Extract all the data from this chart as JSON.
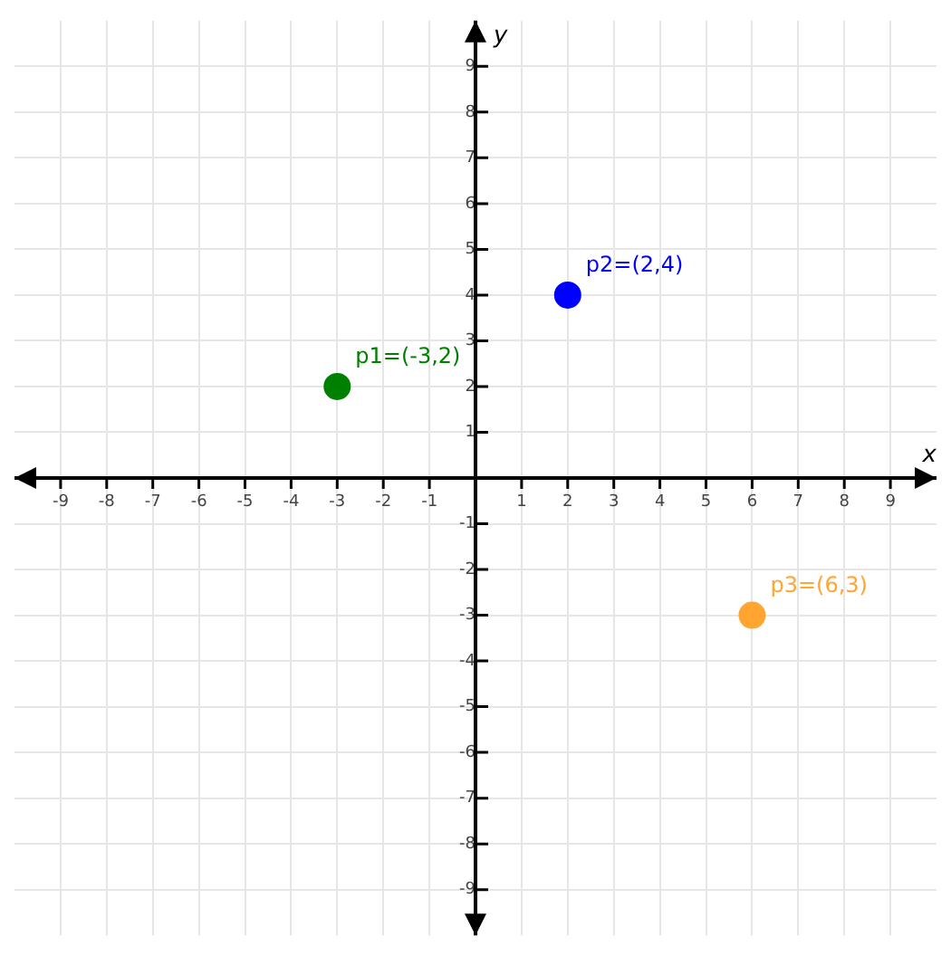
{
  "chart_data": {
    "type": "scatter",
    "xlabel": "x",
    "ylabel": "y",
    "xlim": [
      -10,
      10
    ],
    "ylim": [
      -10,
      10
    ],
    "xticks": [
      -9,
      -8,
      -7,
      -6,
      -5,
      -4,
      -3,
      -2,
      -1,
      1,
      2,
      3,
      4,
      5,
      6,
      7,
      8,
      9
    ],
    "yticks": [
      -9,
      -8,
      -7,
      -6,
      -5,
      -4,
      -3,
      -2,
      -1,
      1,
      2,
      3,
      4,
      5,
      6,
      7,
      8,
      9
    ],
    "grid": true,
    "legend": false,
    "marker": "circle",
    "series": [
      {
        "name": "p1=(-3,2)",
        "color": "#008000",
        "x": [
          -3
        ],
        "values": [
          2
        ]
      },
      {
        "name": "p2=(2,4)",
        "color": "#0000ff",
        "x": [
          2
        ],
        "values": [
          4
        ]
      },
      {
        "name": "p3=(6,3)",
        "color": "#ffa530",
        "x": [
          6
        ],
        "values": [
          -3
        ]
      }
    ]
  }
}
